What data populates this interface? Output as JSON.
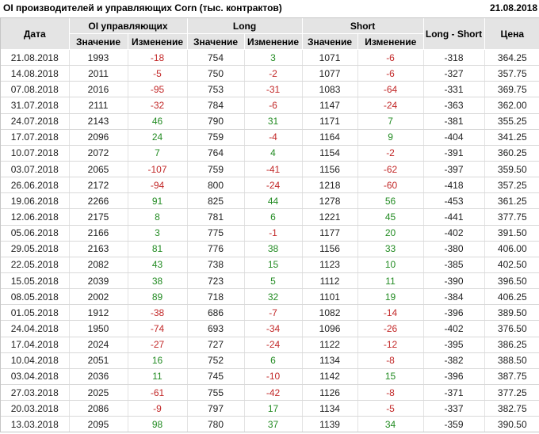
{
  "page": {
    "title": "OI производителей и управляющих Corn (тыс. контрактов)",
    "report_date": "21.08.2018"
  },
  "colors": {
    "negative": "#c22828",
    "positive": "#228b22",
    "header_bg": "#e4e4e4"
  },
  "chart_data": {
    "type": "table",
    "title": "OI производителей и управляющих Corn (тыс. контрактов)",
    "report_date": "21.08.2018",
    "header": {
      "col_date": "Дата",
      "group_oi": "OI управляющих",
      "group_long": "Long",
      "group_short": "Short",
      "col_long_short": "Long - Short",
      "col_price": "Цена",
      "sub_value": "Значение",
      "sub_change": "Изменение"
    },
    "columns": [
      "Дата",
      "OI управляющих Значение",
      "OI управляющих Изменение",
      "Long Значение",
      "Long Изменение",
      "Short Значение",
      "Short Изменение",
      "Long - Short",
      "Цена"
    ],
    "column_keys": [
      "date-cell",
      "oi-value-cell",
      "oi-change-cell",
      "long-value-cell",
      "long-change-cell",
      "short-value-cell",
      "short-change-cell",
      "long-short-cell",
      "price-cell"
    ],
    "change_column_indices": [
      2,
      4,
      6
    ],
    "rows": [
      [
        "21.08.2018",
        1993,
        -18,
        754,
        3,
        1071,
        -6,
        -318,
        "364.25"
      ],
      [
        "14.08.2018",
        2011,
        -5,
        750,
        -2,
        1077,
        -6,
        -327,
        "357.75"
      ],
      [
        "07.08.2018",
        2016,
        -95,
        753,
        -31,
        1083,
        -64,
        -331,
        "369.75"
      ],
      [
        "31.07.2018",
        2111,
        -32,
        784,
        -6,
        1147,
        -24,
        -363,
        "362.00"
      ],
      [
        "24.07.2018",
        2143,
        46,
        790,
        31,
        1171,
        7,
        -381,
        "355.25"
      ],
      [
        "17.07.2018",
        2096,
        24,
        759,
        -4,
        1164,
        9,
        -404,
        "341.25"
      ],
      [
        "10.07.2018",
        2072,
        7,
        764,
        4,
        1154,
        -2,
        -391,
        "360.25"
      ],
      [
        "03.07.2018",
        2065,
        -107,
        759,
        -41,
        1156,
        -62,
        -397,
        "359.50"
      ],
      [
        "26.06.2018",
        2172,
        -94,
        800,
        -24,
        1218,
        -60,
        -418,
        "357.25"
      ],
      [
        "19.06.2018",
        2266,
        91,
        825,
        44,
        1278,
        56,
        -453,
        "361.25"
      ],
      [
        "12.06.2018",
        2175,
        8,
        781,
        6,
        1221,
        45,
        -441,
        "377.75"
      ],
      [
        "05.06.2018",
        2166,
        3,
        775,
        -1,
        1177,
        20,
        -402,
        "391.50"
      ],
      [
        "29.05.2018",
        2163,
        81,
        776,
        38,
        1156,
        33,
        -380,
        "406.00"
      ],
      [
        "22.05.2018",
        2082,
        43,
        738,
        15,
        1123,
        10,
        -385,
        "402.50"
      ],
      [
        "15.05.2018",
        2039,
        38,
        723,
        5,
        1112,
        11,
        -390,
        "396.50"
      ],
      [
        "08.05.2018",
        2002,
        89,
        718,
        32,
        1101,
        19,
        -384,
        "406.25"
      ],
      [
        "01.05.2018",
        1912,
        -38,
        686,
        -7,
        1082,
        -14,
        -396,
        "389.50"
      ],
      [
        "24.04.2018",
        1950,
        -74,
        693,
        -34,
        1096,
        -26,
        -402,
        "376.50"
      ],
      [
        "17.04.2018",
        2024,
        -27,
        727,
        -24,
        1122,
        -12,
        -395,
        "386.25"
      ],
      [
        "10.04.2018",
        2051,
        16,
        752,
        6,
        1134,
        -8,
        -382,
        "388.50"
      ],
      [
        "03.04.2018",
        2036,
        11,
        745,
        -10,
        1142,
        15,
        -396,
        "387.75"
      ],
      [
        "27.03.2018",
        2025,
        -61,
        755,
        -42,
        1126,
        -8,
        -371,
        "377.25"
      ],
      [
        "20.03.2018",
        2086,
        -9,
        797,
        17,
        1134,
        -5,
        -337,
        "382.75"
      ],
      [
        "13.03.2018",
        2095,
        98,
        780,
        37,
        1139,
        34,
        -359,
        "390.50"
      ]
    ]
  }
}
